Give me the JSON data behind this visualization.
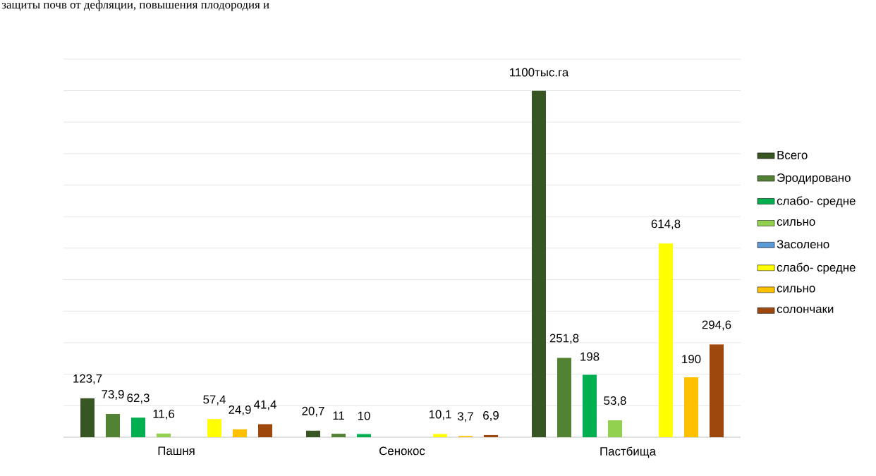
{
  "chart_data": {
    "type": "bar",
    "categories": [
      "Пашня",
      "Сенокос",
      "Пастбища"
    ],
    "series": [
      {
        "name": "Всего",
        "color": "#375623",
        "values": [
          123.7,
          20.7,
          1100
        ],
        "value_labels": [
          "123,7",
          "20,7",
          "1100тыс.га"
        ]
      },
      {
        "name": "Эродировано",
        "color": "#548235",
        "values": [
          73.9,
          11,
          251.8
        ],
        "value_labels": [
          "73,9",
          "11",
          "251,8"
        ]
      },
      {
        "name": "слабо- средне",
        "color": "#00b050",
        "values": [
          62.3,
          10,
          198
        ],
        "value_labels": [
          "62,3",
          "10",
          "198"
        ]
      },
      {
        "name": "сильно",
        "color": "#92d050",
        "values": [
          11.6,
          null,
          53.8
        ],
        "value_labels": [
          "11,6",
          null,
          "53,8"
        ]
      },
      {
        "name": "Засолено",
        "color": "#5b9bd5",
        "values": [
          null,
          null,
          null
        ],
        "value_labels": [
          null,
          null,
          null
        ]
      },
      {
        "name": "слабо- средне",
        "color": "#ffff00",
        "values": [
          57.4,
          10.1,
          614.8
        ],
        "value_labels": [
          "57,4",
          "10,1",
          "614,8"
        ]
      },
      {
        "name": "сильно",
        "color": "#ffc000",
        "values": [
          24.9,
          3.7,
          190
        ],
        "value_labels": [
          "24,9",
          "3,7",
          "190"
        ]
      },
      {
        "name": "солончаки",
        "color": "#9e480e",
        "values": [
          41.4,
          6.9,
          294.6
        ],
        "value_labels": [
          "41,4",
          "6,9",
          "294,6"
        ]
      }
    ],
    "annotations": [
      "защиты почв от дефляции, повышения плодородия и"
    ],
    "grid": "y",
    "legend": "right",
    "tick_labels": "x"
  }
}
